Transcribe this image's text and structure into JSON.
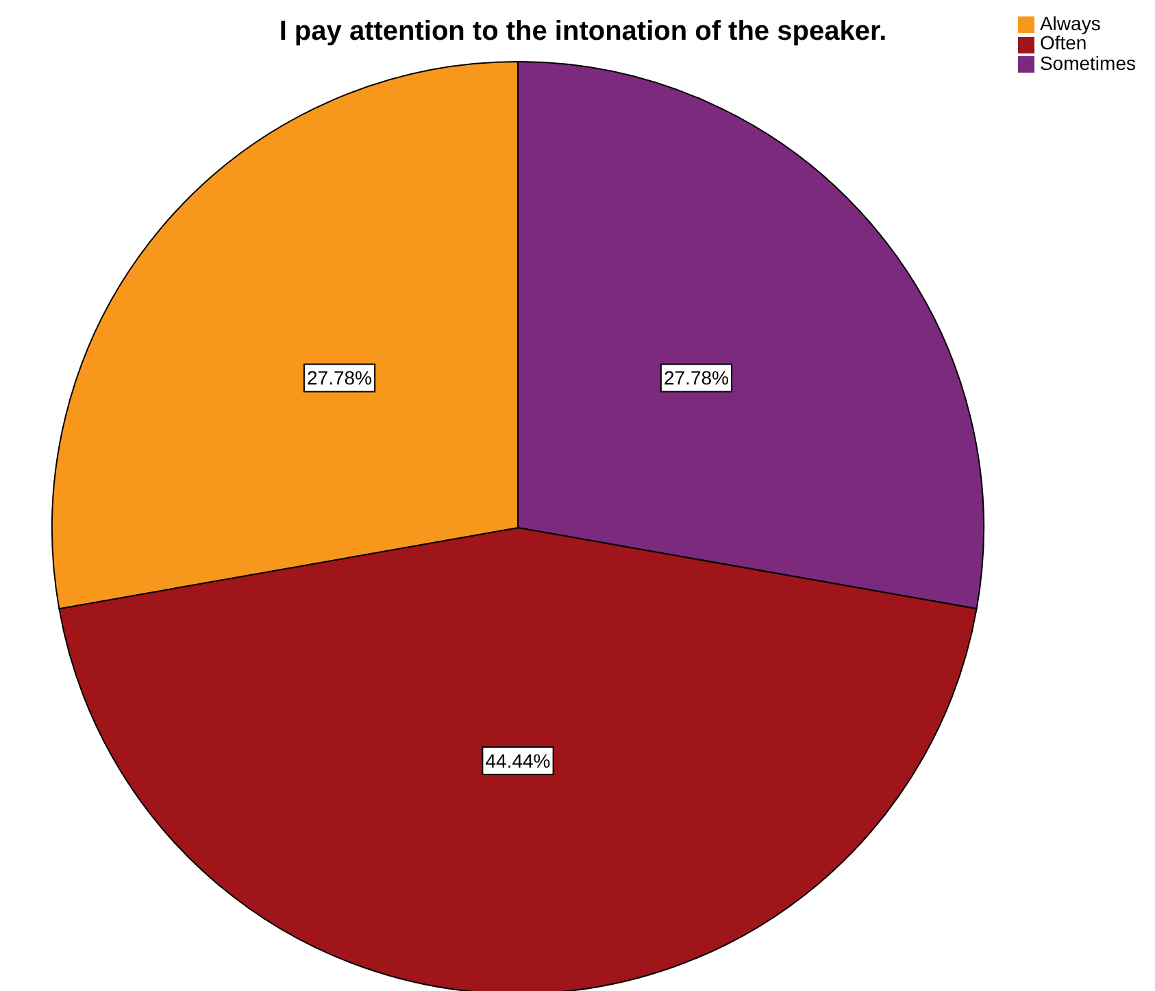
{
  "chart_data": {
    "type": "pie",
    "title": "I pay attention to the intonation of the speaker.",
    "categories": [
      "Sometimes",
      "Often",
      "Always"
    ],
    "values": [
      27.78,
      44.44,
      27.78
    ],
    "colors": [
      "#7b2a7e",
      "#a01519",
      "#f7981d"
    ],
    "value_labels": [
      "27.78%",
      "44.44%",
      "27.78%"
    ],
    "legend": "top right"
  }
}
